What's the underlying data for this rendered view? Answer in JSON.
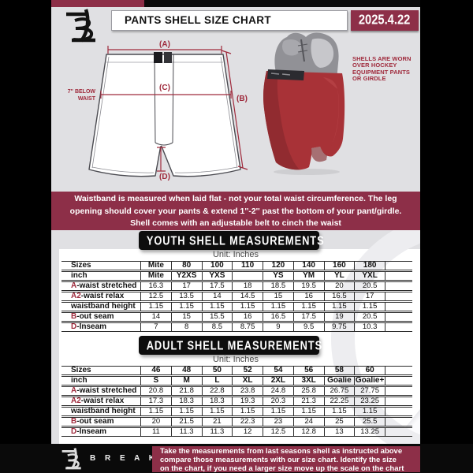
{
  "header": {
    "title": "PANTS SHELL SIZE CHART",
    "date": "2025.4.22"
  },
  "diagram": {
    "labels": {
      "a": "(A)",
      "b": "(B)",
      "c": "(C)",
      "d": "(D)"
    },
    "waist_note_lines": [
      "7\" BELOW",
      "WAIST"
    ]
  },
  "photo": {
    "caption_lines": [
      "SHELLS ARE WORN",
      "OVER HOCKEY",
      "EQUIPMENT PANTS",
      "OR GIRDLE"
    ]
  },
  "banner": {
    "lines": [
      "Waistband is measured when laid flat - not your total waist circumference. The leg",
      "opening should cover your pants & extend 1''-2'' past the bottom of your pant/girdle.",
      "Shell comes with an adjustable belt to cinch the waist"
    ]
  },
  "youth": {
    "heading": "YOUTH SHELL MEASUREMENTS",
    "unit": "Unit: Inches"
  },
  "adult": {
    "heading": "ADULT SHELL MEASUREMENTS",
    "unit": "Unit: Inches"
  },
  "youth_table": {
    "rows": [
      {
        "prefix": "",
        "label": "Sizes",
        "header": true,
        "values": [
          "Mite",
          "80",
          "100",
          "110",
          "120",
          "140",
          "160",
          "180"
        ]
      },
      {
        "prefix": "",
        "label": "inch",
        "header": true,
        "values": [
          "Mite",
          "Y2XS",
          "YXS",
          "",
          "YS",
          "YM",
          "YL",
          "YXL"
        ]
      },
      {
        "prefix": "A",
        "label": "-waist stretched",
        "header": false,
        "values": [
          "16.3",
          "17",
          "17.5",
          "18",
          "18.5",
          "19.5",
          "20",
          "20.5"
        ]
      },
      {
        "prefix": "A2",
        "label": "-waist relax",
        "header": false,
        "values": [
          "12.5",
          "13.5",
          "14",
          "14.5",
          "15",
          "16",
          "16.5",
          "17"
        ]
      },
      {
        "prefix": "",
        "label": "waistband height",
        "header": false,
        "values": [
          "1.15",
          "1.15",
          "1.15",
          "1.15",
          "1.15",
          "1.15",
          "1.15",
          "1.15"
        ]
      },
      {
        "prefix": "B",
        "label": "-out seam",
        "header": false,
        "values": [
          "14",
          "15",
          "15.5",
          "16",
          "16.5",
          "17.5",
          "19",
          "20.5"
        ]
      },
      {
        "prefix": "D",
        "label": "-Inseam",
        "header": false,
        "values": [
          "7",
          "8",
          "8.5",
          "8.75",
          "9",
          "9.5",
          "9.75",
          "10.3"
        ]
      }
    ]
  },
  "adult_table": {
    "rows": [
      {
        "prefix": "",
        "label": "Sizes",
        "header": true,
        "values": [
          "46",
          "48",
          "50",
          "52",
          "54",
          "56",
          "58",
          "60"
        ]
      },
      {
        "prefix": "",
        "label": "inch",
        "header": true,
        "values": [
          "S",
          "M",
          "L",
          "XL",
          "2XL",
          "3XL",
          "Goalie",
          "Goalie+"
        ]
      },
      {
        "prefix": "A",
        "label": "-waist stretched",
        "header": false,
        "values": [
          "20.8",
          "21.8",
          "22.8",
          "23.8",
          "24.8",
          "25.8",
          "26.75",
          "27.75"
        ]
      },
      {
        "prefix": "A2",
        "label": "-waist relax",
        "header": false,
        "values": [
          "17.3",
          "18.3",
          "18.3",
          "19.3",
          "20.3",
          "21.3",
          "22.25",
          "23.25"
        ]
      },
      {
        "prefix": "",
        "label": "waistband height",
        "header": false,
        "values": [
          "1.15",
          "1.15",
          "1.15",
          "1.15",
          "1.15",
          "1.15",
          "1.15",
          "1.15"
        ]
      },
      {
        "prefix": "B",
        "label": "-out seam",
        "header": false,
        "values": [
          "20",
          "21.5",
          "21",
          "22.3",
          "23",
          "24",
          "25",
          "25.5"
        ]
      },
      {
        "prefix": "D",
        "label": "-Inseam",
        "header": false,
        "values": [
          "11",
          "11.3",
          "11.3",
          "12",
          "12.5",
          "12.8",
          "13",
          "13.25"
        ]
      }
    ]
  },
  "footer": {
    "brand": "B R E A K A W A Y",
    "lines": [
      "Take the measurements from last seasons shell as instructed above",
      "compare those measurements  with our size chart. Identify the size",
      "on the chart, if you need a larger size move up the scale on the chart"
    ]
  },
  "colors": {
    "maroon": "#8d2f48",
    "accent_red": "#9f2a3c",
    "shell_red": "#a83237",
    "background_gray": "#e0e0e3",
    "page_white": "#ffffff",
    "box_black": "#0d0d0d"
  }
}
